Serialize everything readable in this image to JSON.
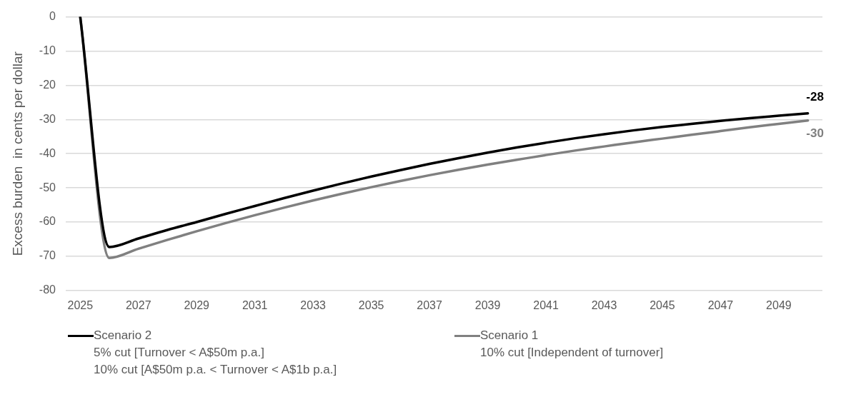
{
  "chart_data": {
    "type": "line",
    "ylabel": "Excess burden  in cents per dollar",
    "categories": [
      "2025",
      null,
      "2027",
      null,
      "2029",
      null,
      "2031",
      null,
      "2033",
      null,
      "2035",
      null,
      "2037",
      null,
      "2039",
      null,
      "2041",
      null,
      "2043",
      null,
      "2045",
      null,
      "2047",
      null,
      "2049",
      null
    ],
    "series": [
      {
        "name": "Scenario 2\n5% cut [Turnover < A$50m p.a.]\n10% cut [A$50m p.a. < Turnover < A$1b p.a.]",
        "color": "#000000",
        "values": [
          0,
          -67.3,
          -64.8,
          -62.3,
          -60.0,
          -57.6,
          -55.3,
          -53.0,
          -50.8,
          -48.7,
          -46.7,
          -44.8,
          -43.0,
          -41.3,
          -39.7,
          -38.2,
          -36.8,
          -35.5,
          -34.3,
          -33.2,
          -32.2,
          -31.3,
          -30.4,
          -29.6,
          -28.9,
          -28.2
        ],
        "value_labels": [
          null,
          null,
          null,
          null,
          null,
          null,
          null,
          null,
          null,
          null,
          null,
          null,
          null,
          null,
          null,
          null,
          null,
          null,
          null,
          null,
          null,
          null,
          null,
          null,
          null,
          "-28"
        ]
      },
      {
        "name": "Scenario 1\n10% cut [Independent of turnover]",
        "color": "#808080",
        "values": [
          0,
          -70.5,
          -67.8,
          -65.2,
          -62.7,
          -60.3,
          -58.0,
          -55.8,
          -53.7,
          -51.7,
          -49.8,
          -48.0,
          -46.3,
          -44.7,
          -43.2,
          -41.8,
          -40.4,
          -39.1,
          -37.9,
          -36.7,
          -35.6,
          -34.5,
          -33.4,
          -32.3,
          -31.3,
          -30.3
        ],
        "value_labels": [
          null,
          null,
          null,
          null,
          null,
          null,
          null,
          null,
          null,
          null,
          null,
          null,
          null,
          null,
          null,
          null,
          null,
          null,
          null,
          null,
          null,
          null,
          null,
          null,
          null,
          "-30"
        ]
      }
    ],
    "ylim": [
      -80,
      0
    ],
    "yticks": [
      0,
      -10,
      -20,
      -30,
      -40,
      -50,
      -60,
      -70,
      -80
    ],
    "grid": "y",
    "legend": "bottom",
    "marker": "none",
    "line_style": "solid"
  }
}
